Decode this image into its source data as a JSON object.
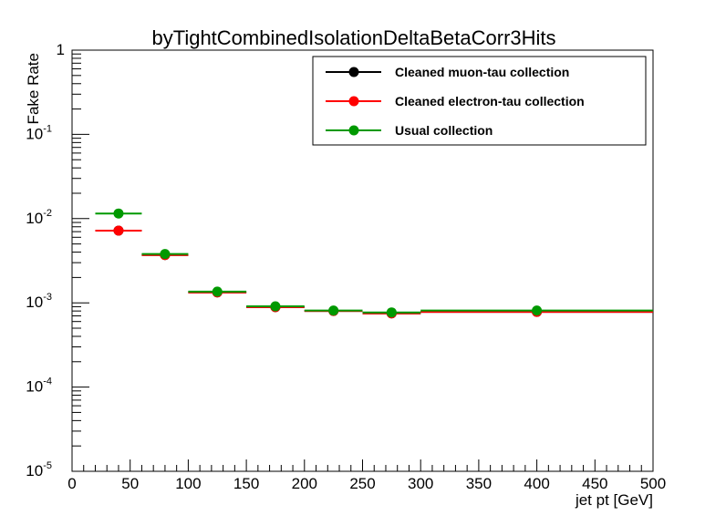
{
  "chart_data": {
    "type": "scatter",
    "title": "byTightCombinedIsolationDeltaBetaCorr3Hits",
    "xlabel": "jet pt [GeV]",
    "ylabel": "Fake Rate",
    "xlim": [
      0,
      500
    ],
    "ylim": [
      1e-05,
      1
    ],
    "yscale": "log",
    "grid": false,
    "legend_position": "top-right",
    "x_ticks": [
      "0",
      "50",
      "100",
      "150",
      "200",
      "250",
      "300",
      "350",
      "400",
      "450",
      "500"
    ],
    "y_ticks": [
      {
        "base": "10",
        "exp": "-5"
      },
      {
        "base": "10",
        "exp": "-4"
      },
      {
        "base": "10",
        "exp": "-3"
      },
      {
        "base": "10",
        "exp": "-2"
      },
      {
        "base": "10",
        "exp": "-1"
      },
      {
        "base": "1",
        "exp": ""
      }
    ],
    "bins": [
      {
        "xlow": 20,
        "xhigh": 60,
        "x": 40
      },
      {
        "xlow": 60,
        "xhigh": 100,
        "x": 80
      },
      {
        "xlow": 100,
        "xhigh": 150,
        "x": 125
      },
      {
        "xlow": 150,
        "xhigh": 200,
        "x": 175
      },
      {
        "xlow": 200,
        "xhigh": 250,
        "x": 225
      },
      {
        "xlow": 250,
        "xhigh": 300,
        "x": 275
      },
      {
        "xlow": 300,
        "xhigh": 500,
        "x": 400
      }
    ],
    "series": [
      {
        "name": "Cleaned muon-tau collection",
        "color": "#000000",
        "values": [
          0.0072,
          0.0037,
          0.00133,
          0.00089,
          0.0008,
          0.00075,
          0.00078
        ]
      },
      {
        "name": "Cleaned electron-tau collection",
        "color": "#ff0000",
        "values": [
          0.0072,
          0.0037,
          0.00133,
          0.00089,
          0.0008,
          0.00075,
          0.00078
        ]
      },
      {
        "name": "Usual collection",
        "color": "#009900",
        "values": [
          0.0115,
          0.0038,
          0.00136,
          0.00091,
          0.00081,
          0.00077,
          0.00081
        ]
      }
    ]
  }
}
